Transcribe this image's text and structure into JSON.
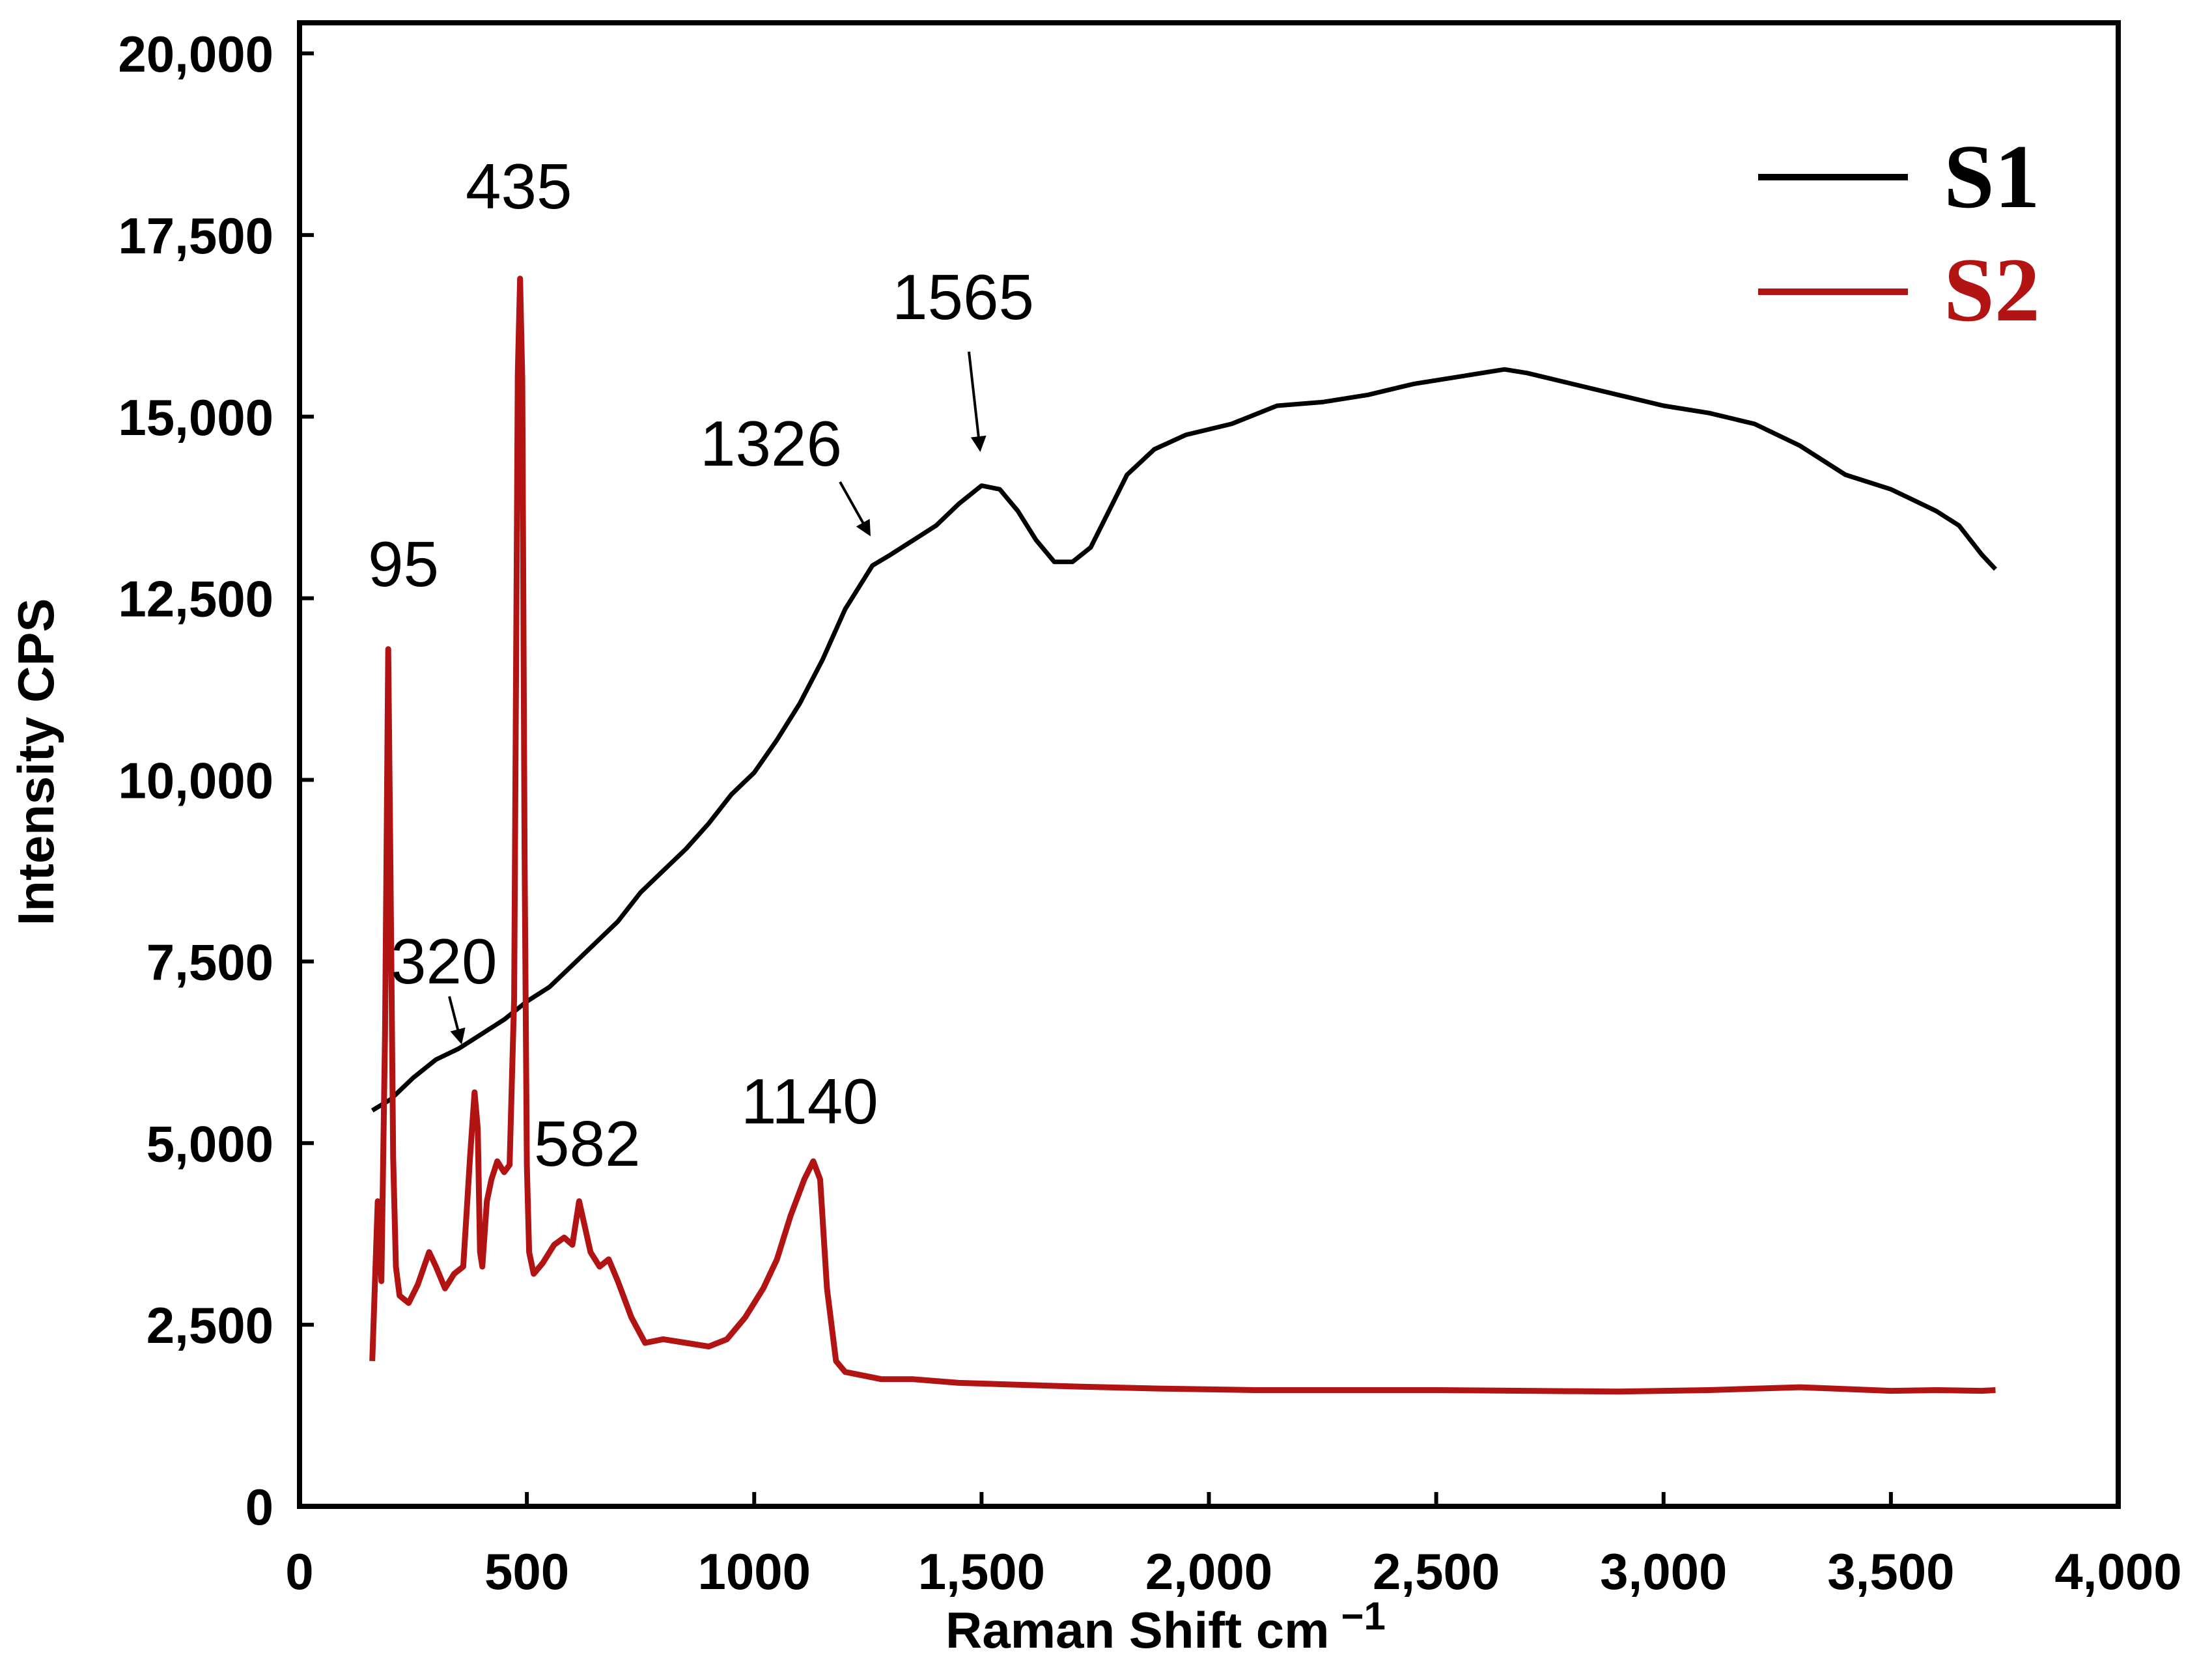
{
  "chart_data": {
    "type": "line",
    "xlabel": "Raman  Shift cm",
    "xlabel_sup": "−1",
    "ylabel": "Intensity CPS",
    "xlim": [
      0,
      4000
    ],
    "ylim": [
      0,
      20000
    ],
    "grid": false,
    "legend_position": "top-right",
    "x_ticks": [
      0,
      500,
      1000,
      1500,
      2000,
      2500,
      3000,
      3500,
      4000
    ],
    "x_tick_labels": [
      "0",
      "500",
      "1000",
      "1,500",
      "2,000",
      "2,500",
      "3,000",
      "3,500",
      "4,000"
    ],
    "y_ticks": [
      0,
      2500,
      5000,
      7500,
      10000,
      12500,
      15000,
      17500,
      20000
    ],
    "y_tick_labels": [
      "0",
      "2,500",
      "5,000",
      "7,500",
      "10,000",
      "12,500",
      "15,000",
      "17,500",
      "20,000"
    ],
    "series": [
      {
        "name": "S1",
        "color": "#000000",
        "x": [
          160,
          200,
          250,
          300,
          350,
          400,
          450,
          500,
          550,
          600,
          650,
          700,
          750,
          800,
          850,
          900,
          950,
          1000,
          1050,
          1100,
          1150,
          1200,
          1260,
          1300,
          1350,
          1400,
          1450,
          1500,
          1540,
          1580,
          1620,
          1660,
          1700,
          1740,
          1780,
          1820,
          1880,
          1950,
          2050,
          2150,
          2250,
          2350,
          2450,
          2550,
          2650,
          2700,
          2800,
          2900,
          3000,
          3100,
          3200,
          3300,
          3400,
          3500,
          3550,
          3600,
          3650,
          3700,
          3730
        ],
        "y": [
          5450,
          5600,
          5900,
          6150,
          6300,
          6500,
          6700,
          6950,
          7150,
          7450,
          7750,
          8050,
          8450,
          8750,
          9050,
          9400,
          9800,
          10100,
          10550,
          11050,
          11650,
          12350,
          12950,
          13100,
          13300,
          13500,
          13800,
          14050,
          14000,
          13700,
          13300,
          13000,
          13000,
          13200,
          13700,
          14200,
          14550,
          14750,
          14900,
          15150,
          15200,
          15300,
          15450,
          15550,
          15650,
          15600,
          15450,
          15300,
          15150,
          15050,
          14900,
          14600,
          14200,
          14000,
          13850,
          13700,
          13500,
          13100,
          12900
        ]
      },
      {
        "name": "S2",
        "color": "#b21414",
        "x": [
          160,
          172,
          180,
          188,
          195,
          200,
          206,
          212,
          220,
          240,
          260,
          285,
          300,
          320,
          340,
          360,
          375,
          385,
          392,
          397,
          402,
          412,
          422,
          435,
          450,
          462,
          472,
          480,
          485,
          490,
          495,
          500,
          505,
          515,
          535,
          560,
          582,
          600,
          615,
          640,
          660,
          680,
          700,
          730,
          760,
          800,
          850,
          900,
          940,
          980,
          1020,
          1050,
          1080,
          1110,
          1130,
          1145,
          1160,
          1180,
          1200,
          1240,
          1280,
          1350,
          1450,
          1550,
          1700,
          1900,
          2100,
          2300,
          2500,
          2700,
          2900,
          3100,
          3300,
          3500,
          3600,
          3700,
          3730
        ],
        "y": [
          2000,
          4200,
          3100,
          6500,
          11800,
          8800,
          4800,
          3300,
          2900,
          2800,
          3050,
          3500,
          3300,
          3000,
          3200,
          3300,
          4800,
          5700,
          5200,
          3500,
          3300,
          4200,
          4500,
          4750,
          4600,
          4700,
          7000,
          15600,
          16900,
          15500,
          9000,
          4700,
          3500,
          3200,
          3350,
          3600,
          3700,
          3600,
          4200,
          3500,
          3300,
          3400,
          3100,
          2600,
          2250,
          2300,
          2250,
          2200,
          2300,
          2600,
          3000,
          3400,
          4000,
          4500,
          4750,
          4500,
          3000,
          2000,
          1850,
          1800,
          1750,
          1750,
          1700,
          1680,
          1650,
          1620,
          1600,
          1600,
          1600,
          1590,
          1580,
          1600,
          1640,
          1590,
          1600,
          1590,
          1600
        ]
      }
    ],
    "annotations": [
      {
        "text": "95",
        "series": "S2"
      },
      {
        "text": "435",
        "series": "S2"
      },
      {
        "text": "320",
        "series": "S1"
      },
      {
        "text": "582",
        "series": "S2"
      },
      {
        "text": "1140",
        "series": "S2"
      },
      {
        "text": "1326",
        "series": "S1"
      },
      {
        "text": "1565",
        "series": "S1"
      }
    ]
  }
}
